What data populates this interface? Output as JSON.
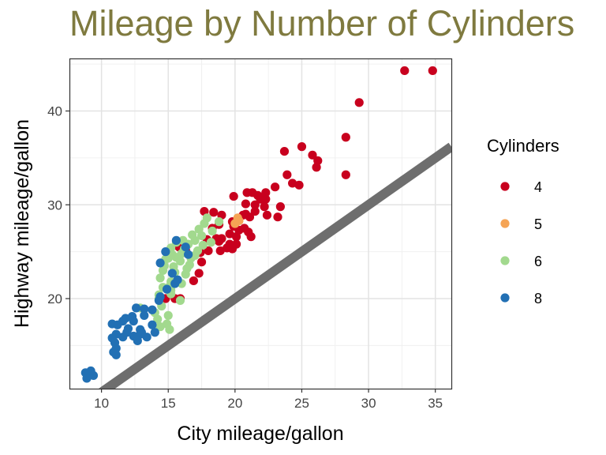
{
  "chart_data": {
    "type": "scatter",
    "title": "Mileage by Number of Cylinders",
    "xlabel": "City mileage/gallon",
    "ylabel": "Highway mileage/gallon",
    "xlim": [
      7.6,
      36.2
    ],
    "ylim": [
      10.4,
      45.6
    ],
    "xticks": [
      10,
      15,
      20,
      25,
      30,
      35
    ],
    "yticks": [
      20,
      30,
      40
    ],
    "grid": true,
    "legend": {
      "title": "Cylinders",
      "position": "right"
    },
    "reference_line": {
      "description": "y = x",
      "color": "#6e6e6e"
    },
    "series": [
      {
        "name": "4",
        "color": "#c8001e",
        "points": [
          [
            34.8,
            44.3
          ],
          [
            32.7,
            44.3
          ],
          [
            29.3,
            40.9
          ],
          [
            28.3,
            37.2
          ],
          [
            28.3,
            33.2
          ],
          [
            26.2,
            34.7
          ],
          [
            26.1,
            34.0
          ],
          [
            25.8,
            35.3
          ],
          [
            25.0,
            36.2
          ],
          [
            23.7,
            35.7
          ],
          [
            24.3,
            32.3
          ],
          [
            24.8,
            32.1
          ],
          [
            23.9,
            33.2
          ],
          [
            23.0,
            31.9
          ],
          [
            22.3,
            31.3
          ],
          [
            21.9,
            30.6
          ],
          [
            21.3,
            31.3
          ],
          [
            20.9,
            31.3
          ],
          [
            21.7,
            31.0
          ],
          [
            22.3,
            30.6
          ],
          [
            19.9,
            30.9
          ],
          [
            20.8,
            30.1
          ],
          [
            21.5,
            30.0
          ],
          [
            23.4,
            29.8
          ],
          [
            22.2,
            29.8
          ],
          [
            21.5,
            29.3
          ],
          [
            22.4,
            28.9
          ],
          [
            23.2,
            28.7
          ],
          [
            20.8,
            29.0
          ],
          [
            21.1,
            28.7
          ],
          [
            20.6,
            28.9
          ],
          [
            19.8,
            28.2
          ],
          [
            18.8,
            27.9
          ],
          [
            19.9,
            27.7
          ],
          [
            20.7,
            27.5
          ],
          [
            21.0,
            27.1
          ],
          [
            20.3,
            27.3
          ],
          [
            21.2,
            26.6
          ],
          [
            19.6,
            26.9
          ],
          [
            19.0,
            26.4
          ],
          [
            20.1,
            26.6
          ],
          [
            18.8,
            26.1
          ],
          [
            19.4,
            25.4
          ],
          [
            18.6,
            26.4
          ],
          [
            18.0,
            25.1
          ],
          [
            19.8,
            25.3
          ],
          [
            19.6,
            25.8
          ],
          [
            20.1,
            25.8
          ],
          [
            18.9,
            25.1
          ],
          [
            17.4,
            24.9
          ],
          [
            16.3,
            25.2
          ],
          [
            15.8,
            25.5
          ],
          [
            17.5,
            23.9
          ],
          [
            17.3,
            22.7
          ],
          [
            16.9,
            21.9
          ],
          [
            15.5,
            20.0
          ],
          [
            15.9,
            20.0
          ],
          [
            14.8,
            20.0
          ],
          [
            17.7,
            29.3
          ],
          [
            18.4,
            29.2
          ],
          [
            19.0,
            28.9
          ],
          [
            18.3,
            27.5
          ],
          [
            17.9,
            26.3
          ]
        ]
      },
      {
        "name": "5",
        "color": "#f5a455",
        "points": [
          [
            20.2,
            28.6
          ],
          [
            20.3,
            28.3
          ],
          [
            20.0,
            28.0
          ]
        ]
      },
      {
        "name": "6",
        "color": "#a2d98e",
        "points": [
          [
            17.9,
            28.6
          ],
          [
            17.7,
            28.0
          ],
          [
            18.8,
            28.2
          ],
          [
            17.3,
            27.4
          ],
          [
            18.3,
            27.2
          ],
          [
            16.8,
            26.8
          ],
          [
            17.5,
            26.7
          ],
          [
            16.1,
            26.2
          ],
          [
            17.0,
            26.2
          ],
          [
            18.2,
            26.0
          ],
          [
            15.6,
            26.0
          ],
          [
            16.5,
            25.8
          ],
          [
            17.6,
            25.7
          ],
          [
            15.2,
            25.4
          ],
          [
            16.2,
            25.3
          ],
          [
            17.2,
            25.1
          ],
          [
            15.1,
            25.0
          ],
          [
            16.0,
            24.8
          ],
          [
            17.0,
            24.6
          ],
          [
            15.6,
            24.4
          ],
          [
            16.7,
            24.3
          ],
          [
            14.8,
            24.2
          ],
          [
            15.9,
            24.0
          ],
          [
            16.6,
            23.6
          ],
          [
            15.4,
            23.4
          ],
          [
            16.4,
            23.2
          ],
          [
            14.6,
            23.0
          ],
          [
            15.5,
            22.8
          ],
          [
            16.3,
            22.6
          ],
          [
            14.4,
            22.2
          ],
          [
            15.2,
            21.8
          ],
          [
            16.0,
            21.6
          ],
          [
            15.1,
            21.3
          ],
          [
            14.6,
            21.2
          ],
          [
            15.2,
            20.9
          ],
          [
            14.3,
            20.4
          ],
          [
            15.2,
            20.5
          ],
          [
            14.3,
            20.0
          ],
          [
            15.9,
            19.8
          ],
          [
            12.9,
            19.0
          ],
          [
            14.5,
            19.2
          ],
          [
            14.0,
            18.5
          ],
          [
            15.0,
            18.2
          ],
          [
            14.2,
            17.8
          ],
          [
            14.9,
            17.3
          ],
          [
            15.1,
            16.7
          ],
          [
            14.4,
            17.0
          ],
          [
            15.0,
            24.3
          ],
          [
            14.7,
            23.5
          ],
          [
            15.3,
            24.7
          ]
        ]
      },
      {
        "name": "8",
        "color": "#2270b4",
        "points": [
          [
            15.6,
            26.2
          ],
          [
            16.3,
            25.5
          ],
          [
            16.5,
            24.7
          ],
          [
            14.8,
            25.0
          ],
          [
            14.4,
            23.8
          ],
          [
            15.3,
            22.7
          ],
          [
            15.7,
            22.0
          ],
          [
            15.5,
            21.6
          ],
          [
            14.9,
            21.0
          ],
          [
            14.4,
            20.2
          ],
          [
            14.3,
            19.8
          ],
          [
            13.8,
            18.8
          ],
          [
            13.2,
            18.9
          ],
          [
            12.6,
            19.0
          ],
          [
            13.2,
            18.2
          ],
          [
            12.3,
            18.1
          ],
          [
            11.8,
            17.9
          ],
          [
            11.6,
            17.6
          ],
          [
            12.4,
            17.6
          ],
          [
            10.8,
            17.3
          ],
          [
            11.2,
            17.2
          ],
          [
            13.8,
            17.2
          ],
          [
            12.0,
            16.8
          ],
          [
            12.9,
            16.7
          ],
          [
            11.9,
            16.4
          ],
          [
            13.0,
            16.4
          ],
          [
            14.0,
            16.4
          ],
          [
            11.1,
            16.2
          ],
          [
            12.9,
            16.2
          ],
          [
            12.4,
            16.0
          ],
          [
            13.4,
            15.9
          ],
          [
            11.6,
            15.9
          ],
          [
            10.8,
            15.8
          ],
          [
            12.7,
            15.5
          ],
          [
            11.0,
            15.3
          ],
          [
            11.1,
            14.7
          ],
          [
            10.9,
            14.3
          ],
          [
            11.1,
            14.0
          ],
          [
            9.2,
            12.3
          ],
          [
            8.8,
            12.1
          ],
          [
            9.0,
            12.0
          ],
          [
            9.4,
            11.8
          ],
          [
            8.9,
            11.5
          ]
        ]
      }
    ]
  }
}
